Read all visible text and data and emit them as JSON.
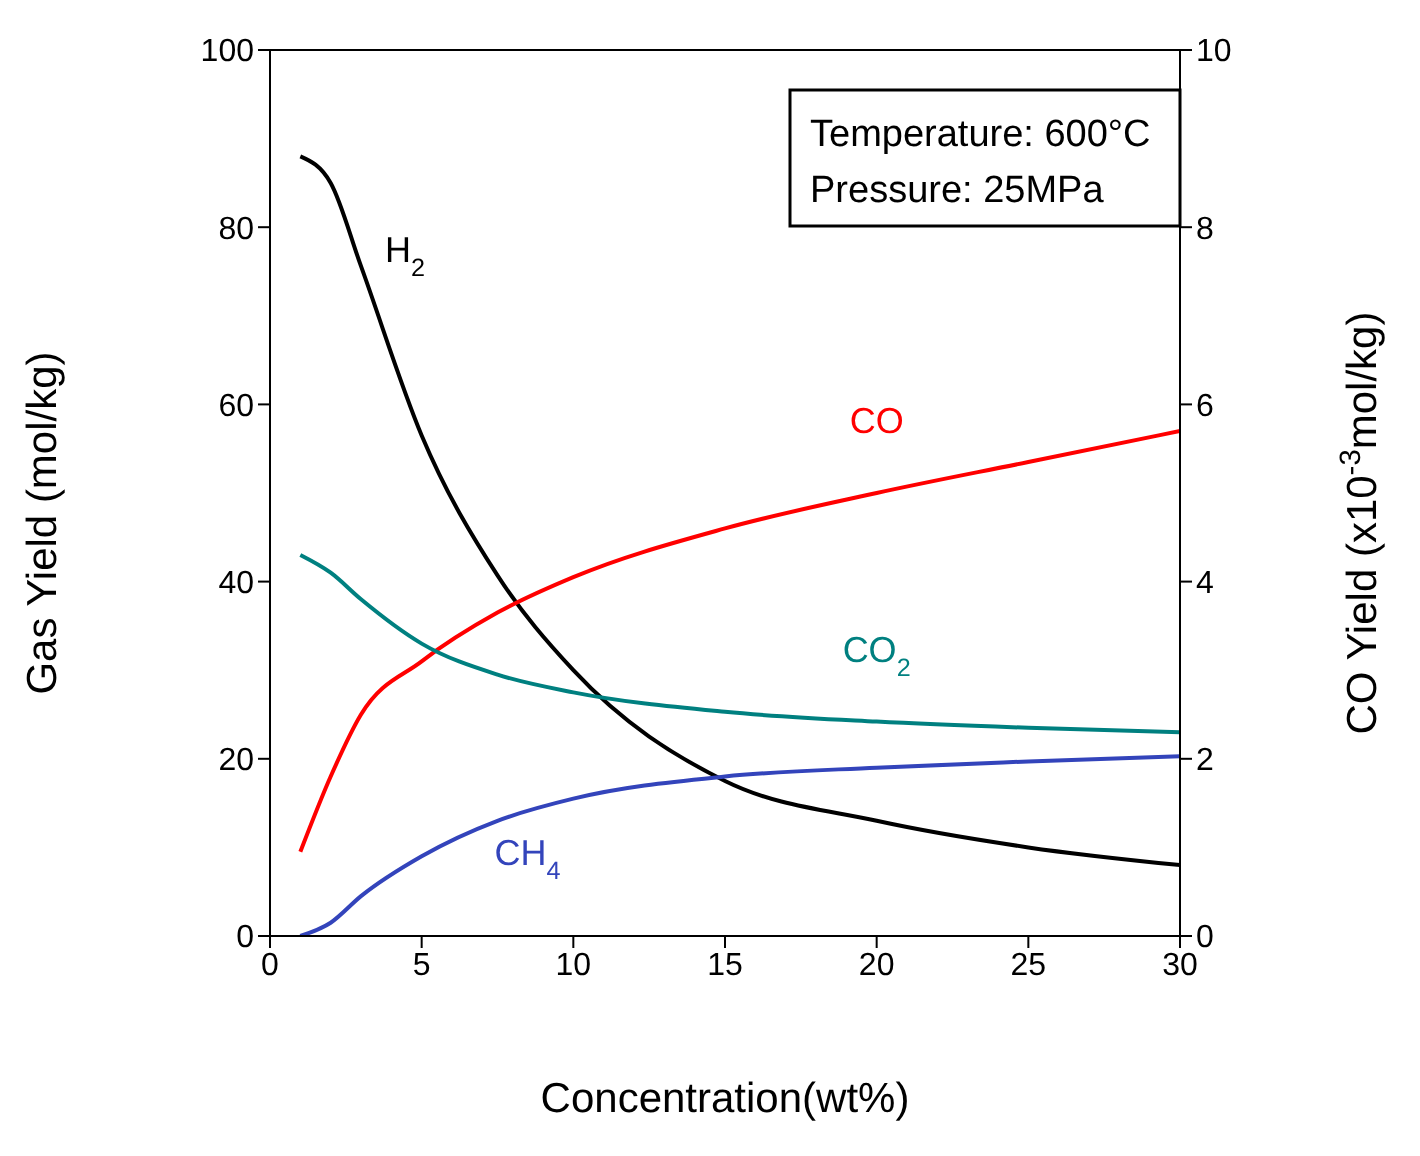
{
  "chart_data": {
    "type": "line",
    "xlabel": "Concentration(wt%)",
    "ylabel": "Gas Yield (mol/kg)",
    "y2label": "CO Yield (x10$^{-3}$mol/kg)",
    "x": [
      1,
      2,
      3,
      5,
      7.5,
      10,
      15,
      20,
      25,
      30
    ],
    "series": [
      {
        "name": "H$_{2}$",
        "color": "#000000",
        "values": [
          88,
          85,
          75.6,
          56.5,
          40.7,
          30,
          17.5,
          13,
          10,
          8
        ]
      },
      {
        "name": "CO",
        "color": "#ff0000",
        "axis": "y2",
        "values": [
          0.95,
          1.8,
          2.5,
          3.1,
          3.65,
          4.05,
          4.6,
          5.0,
          5.35,
          5.7
        ]
      },
      {
        "name": "CO$_{2}$",
        "color": "#008080",
        "values": [
          43,
          41,
          38,
          33,
          29.5,
          27.5,
          25.3,
          24.2,
          23.5,
          23
        ]
      },
      {
        "name": "CH$_{4}$",
        "color": "#3344bb",
        "values": [
          0,
          1.5,
          4.5,
          9,
          13,
          15.5,
          18,
          19,
          19.7,
          20.3
        ]
      }
    ],
    "xlim": [
      0,
      30
    ],
    "xticks": [
      0,
      5,
      10,
      15,
      20,
      25,
      30
    ],
    "ylim": [
      0,
      100
    ],
    "yticks": [
      0,
      20,
      40,
      60,
      80,
      100
    ],
    "y2lim": [
      0,
      10
    ],
    "y2ticks": [
      0,
      2,
      4,
      6,
      8,
      10
    ],
    "marker": "none",
    "annotations": [
      "Temperature: 600°C",
      "Pressure: 25MPa"
    ]
  }
}
